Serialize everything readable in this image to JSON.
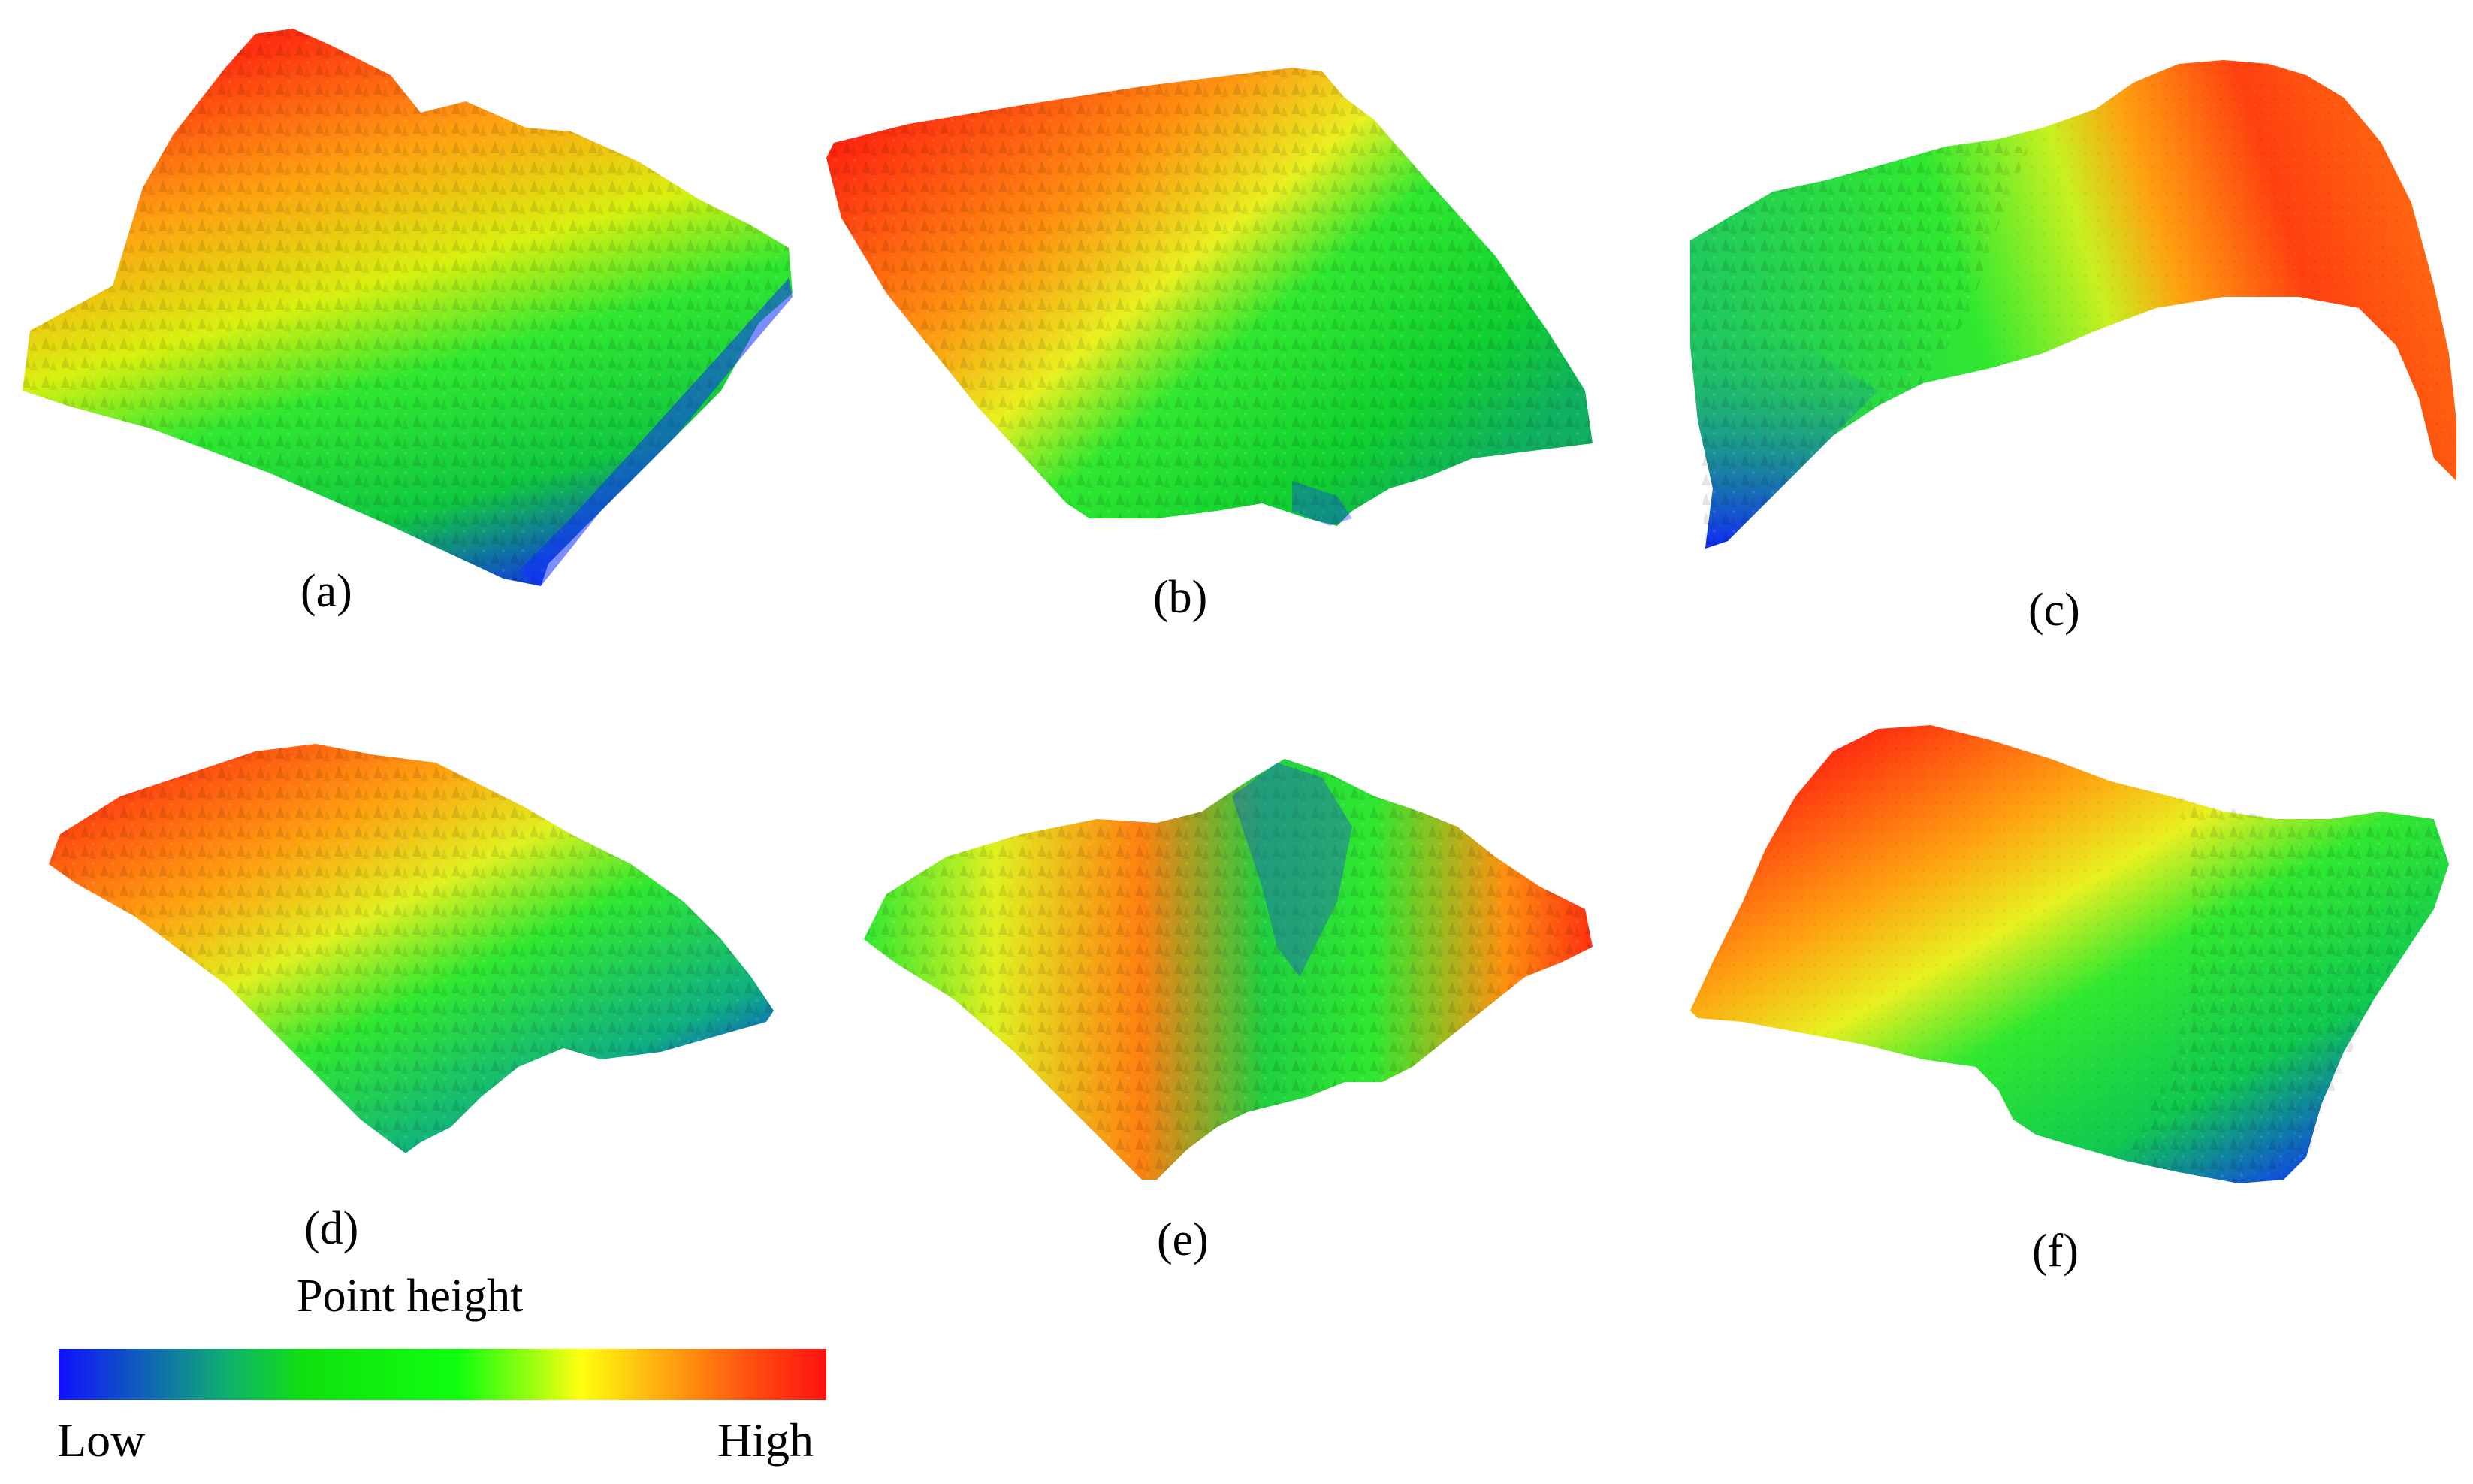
{
  "panels": [
    {
      "label": "(a)"
    },
    {
      "label": "(b)"
    },
    {
      "label": "(c)"
    },
    {
      "label": "(d)"
    },
    {
      "label": "(e)"
    },
    {
      "label": "(f)"
    }
  ],
  "legend": {
    "title": "Point height",
    "low_label": "Low",
    "high_label": "High",
    "colors": [
      "#1010ff",
      "#10b070",
      "#10ff10",
      "#ffff10",
      "#ffb010",
      "#ff1010"
    ]
  }
}
